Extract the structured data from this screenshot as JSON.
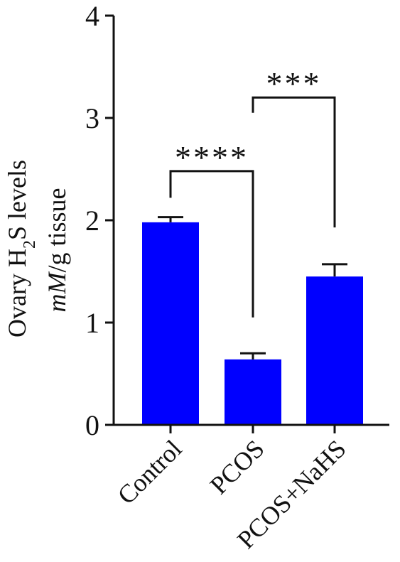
{
  "chart_data": {
    "type": "bar",
    "categories": [
      "Control",
      "PCOS",
      "PCOS+NaHS"
    ],
    "values": [
      1.98,
      0.64,
      1.45
    ],
    "errors": [
      0.05,
      0.06,
      0.12
    ],
    "ylim": [
      0,
      4
    ],
    "yticks": [
      "0",
      "1",
      "2",
      "3",
      "4"
    ],
    "ylabel_line1": {
      "prefix": "Ovary H",
      "sub": "2",
      "suffix": "S levels"
    },
    "ylabel_line2": {
      "italic": "mM",
      "rest": "/g tissue"
    },
    "bar_color": "#0000ff",
    "grid": false,
    "significance": [
      {
        "from": 0,
        "to": 1,
        "label": "****"
      },
      {
        "from": 1,
        "to": 2,
        "label": "***"
      }
    ]
  }
}
